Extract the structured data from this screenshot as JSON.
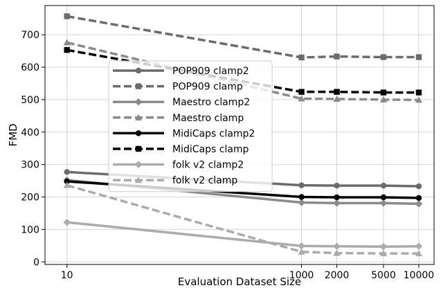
{
  "chart_data": {
    "type": "line",
    "xlabel": "Evaluation Dataset Size",
    "ylabel": "FMD",
    "x_scale": "log",
    "xlim": [
      6.5,
      13500
    ],
    "ylim": [
      -8,
      790
    ],
    "x_ticks": [
      10,
      1000,
      2000,
      5000,
      10000
    ],
    "x_tick_labels": [
      "10",
      "1000",
      "2000",
      "5000",
      "10000"
    ],
    "y_ticks": [
      0,
      100,
      200,
      300,
      400,
      500,
      600,
      700
    ],
    "y_tick_labels": [
      "0",
      "100",
      "200",
      "300",
      "400",
      "500",
      "600",
      "700"
    ],
    "grid": true,
    "legend_position": "upper-left-center",
    "x": [
      10,
      1000,
      2000,
      5000,
      10000
    ],
    "series": [
      {
        "name": "POP909 clamp2",
        "values": [
          277,
          236,
          235,
          235,
          233
        ],
        "color": "#6b6b6b",
        "dash": "solid",
        "marker": "circle"
      },
      {
        "name": "POP909 clamp",
        "values": [
          757,
          630,
          633,
          631,
          631
        ],
        "color": "#6b6b6b",
        "dash": "dashed",
        "marker": "square"
      },
      {
        "name": "Maestro clamp2",
        "values": [
          252,
          183,
          181,
          181,
          179
        ],
        "color": "#8a8a8a",
        "dash": "solid",
        "marker": "diamond"
      },
      {
        "name": "Maestro clamp",
        "values": [
          676,
          503,
          502,
          500,
          499
        ],
        "color": "#8a8a8a",
        "dash": "dashed",
        "marker": "triangle"
      },
      {
        "name": "MidiCaps clamp2",
        "values": [
          248,
          200,
          199,
          199,
          197
        ],
        "color": "#000000",
        "dash": "solid",
        "marker": "circle"
      },
      {
        "name": "MidiCaps clamp",
        "values": [
          653,
          524,
          524,
          522,
          522
        ],
        "color": "#000000",
        "dash": "dashed",
        "marker": "square"
      },
      {
        "name": "folk v2 clamp2",
        "values": [
          122,
          49,
          48,
          47,
          48
        ],
        "color": "#ababab",
        "dash": "solid",
        "marker": "diamond"
      },
      {
        "name": "folk v2 clamp",
        "values": [
          236,
          31,
          27,
          26,
          26
        ],
        "color": "#ababab",
        "dash": "dashed",
        "marker": "triangle"
      }
    ]
  }
}
